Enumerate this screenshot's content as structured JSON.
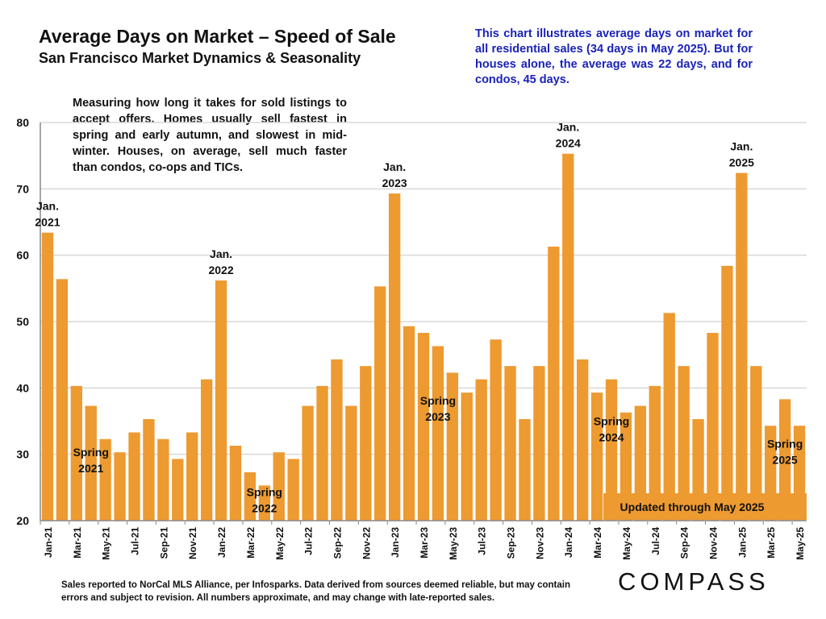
{
  "header": {
    "title": "Average Days on Market – Speed of Sale",
    "subtitle": "San Francisco Market Dynamics & Seasonality"
  },
  "callout_blue": "This chart illustrates average days on market for all residential sales (34 days in May 2025). But for houses alone, the average was 22 days, and for condos, 45 days.",
  "description": "Measuring how long it takes for sold listings to accept offers. Homes usually sell fastest in spring and early autumn, and slowest in mid-winter. Houses, on average, sell much faster than condos, co-ops and TICs.",
  "footer": "Sales reported to NorCal MLS Alliance, per Infosparks. Data derived from sources deemed reliable, but may contain errors and subject to revision. All numbers approximate, and may change with late-reported sales.",
  "logo": "COMPASS",
  "chart_data": {
    "type": "bar",
    "title": "Average Days on Market – Speed of Sale",
    "xlabel": "",
    "ylabel": "Average days on market",
    "ylim": [
      20,
      80
    ],
    "yticks": [
      "20",
      "30",
      "40",
      "50",
      "60",
      "70",
      "80"
    ],
    "grid": true,
    "bar_color": "#ED9A31",
    "categories": [
      "Jan-21",
      "Feb-21",
      "Mar-21",
      "Apr-21",
      "May-21",
      "Jun-21",
      "Jul-21",
      "Aug-21",
      "Sep-21",
      "Oct-21",
      "Nov-21",
      "Dec-21",
      "Jan-22",
      "Feb-22",
      "Mar-22",
      "Apr-22",
      "May-22",
      "Jun-22",
      "Jul-22",
      "Aug-22",
      "Sep-22",
      "Oct-22",
      "Nov-22",
      "Dec-22",
      "Jan-23",
      "Feb-23",
      "Mar-23",
      "Apr-23",
      "May-23",
      "Jun-23",
      "Jul-23",
      "Aug-23",
      "Sep-23",
      "Oct-23",
      "Nov-23",
      "Dec-23",
      "Jan-24",
      "Feb-24",
      "Mar-24",
      "Apr-24",
      "May-24",
      "Jun-24",
      "Jul-24",
      "Aug-24",
      "Sep-24",
      "Oct-24",
      "Nov-24",
      "Dec-24",
      "Jan-25",
      "Feb-25",
      "Mar-25",
      "Apr-25",
      "May-25"
    ],
    "shown_tick_labels": [
      "Jan-21",
      "Mar-21",
      "May-21",
      "Jul-21",
      "Sep-21",
      "Nov-21",
      "Jan-22",
      "Mar-22",
      "May-22",
      "Jul-22",
      "Sep-22",
      "Nov-22",
      "Jan-23",
      "Mar-23",
      "May-23",
      "Jul-23",
      "Sep-23",
      "Nov-23",
      "Jan-24",
      "Mar-24",
      "May-24",
      "Jul-24",
      "Sep-24",
      "Nov-24",
      "Jan-25",
      "Mar-25",
      "May-25"
    ],
    "values": [
      63.4,
      56.4,
      40.3,
      37.3,
      32.3,
      30.3,
      33.3,
      35.3,
      32.3,
      29.3,
      33.3,
      41.3,
      56.2,
      31.3,
      27.3,
      25.3,
      30.3,
      29.3,
      37.3,
      40.3,
      44.3,
      37.3,
      43.3,
      55.3,
      69.3,
      49.3,
      48.3,
      46.3,
      42.3,
      39.3,
      41.3,
      47.3,
      43.3,
      35.3,
      43.3,
      61.3,
      75.3,
      44.3,
      39.3,
      41.3,
      36.3,
      37.3,
      40.3,
      51.3,
      43.3,
      35.3,
      48.3,
      58.4,
      72.4,
      43.3,
      34.3,
      38.3,
      34.3
    ],
    "annotations": [
      {
        "text": [
          "Jan.",
          "2021"
        ],
        "index": 0,
        "anchor": "above"
      },
      {
        "text": [
          "Spring",
          "2021"
        ],
        "index": 3,
        "anchor": "inside",
        "value": 28.5
      },
      {
        "text": [
          "Jan.",
          "2022"
        ],
        "index": 12,
        "anchor": "above"
      },
      {
        "text": [
          "Spring",
          "2022"
        ],
        "index": 15,
        "anchor": "inside",
        "value": 22.5
      },
      {
        "text": [
          "Jan.",
          "2023"
        ],
        "index": 24,
        "anchor": "above"
      },
      {
        "text": [
          "Spring",
          "2023"
        ],
        "index": 27,
        "anchor": "inside",
        "value": 36.3
      },
      {
        "text": [
          "Jan.",
          "2024"
        ],
        "index": 36,
        "anchor": "above"
      },
      {
        "text": [
          "Spring",
          "2024"
        ],
        "index": 39,
        "anchor": "inside",
        "value": 33.2
      },
      {
        "text": [
          "Jan.",
          "2025"
        ],
        "index": 48,
        "anchor": "above"
      },
      {
        "text": [
          "Spring",
          "2025"
        ],
        "index": 51,
        "anchor": "inside",
        "value": 29.8
      }
    ],
    "update_note": "Updated through May 2025"
  }
}
